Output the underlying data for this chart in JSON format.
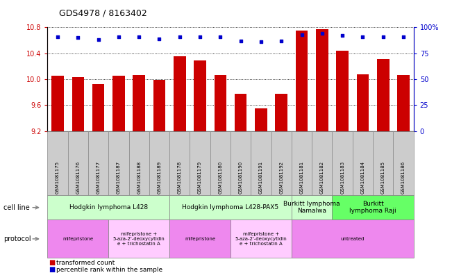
{
  "title": "GDS4978 / 8163402",
  "samples": [
    "GSM1081175",
    "GSM1081176",
    "GSM1081177",
    "GSM1081187",
    "GSM1081188",
    "GSM1081189",
    "GSM1081178",
    "GSM1081179",
    "GSM1081180",
    "GSM1081190",
    "GSM1081191",
    "GSM1081192",
    "GSM1081181",
    "GSM1081182",
    "GSM1081183",
    "GSM1081184",
    "GSM1081185",
    "GSM1081186"
  ],
  "bar_values": [
    10.05,
    10.03,
    9.93,
    10.05,
    10.06,
    9.99,
    10.35,
    10.29,
    10.06,
    9.78,
    9.55,
    9.77,
    10.75,
    10.77,
    10.44,
    10.07,
    10.31,
    10.06
  ],
  "dot_values": [
    91,
    90,
    88,
    91,
    91,
    89,
    91,
    91,
    91,
    87,
    86,
    87,
    93,
    94,
    92,
    91,
    91,
    91
  ],
  "ylim_left": [
    9.2,
    10.8
  ],
  "ylim_right": [
    0,
    100
  ],
  "yticks_left": [
    9.2,
    9.6,
    10.0,
    10.4,
    10.8
  ],
  "yticks_right": [
    0,
    25,
    50,
    75,
    100
  ],
  "bar_color": "#cc0000",
  "dot_color": "#0000cc",
  "bar_width": 0.6,
  "cell_line_groups": [
    {
      "label": "Hodgkin lymphoma L428",
      "start": 0,
      "end": 5,
      "color": "#ccffcc"
    },
    {
      "label": "Hodgkin lymphoma L428-PAX5",
      "start": 6,
      "end": 11,
      "color": "#ccffcc"
    },
    {
      "label": "Burkitt lymphoma\nNamalwa",
      "start": 12,
      "end": 13,
      "color": "#ccffcc"
    },
    {
      "label": "Burkitt\nlymphoma Raji",
      "start": 14,
      "end": 17,
      "color": "#66ff66"
    }
  ],
  "protocol_groups": [
    {
      "label": "mifepristone",
      "start": 0,
      "end": 2,
      "color": "#ee88ee"
    },
    {
      "label": "mifepristone +\n5-aza-2'-deoxycytidin\ne + trichostatin A",
      "start": 3,
      "end": 5,
      "color": "#ffccff"
    },
    {
      "label": "mifepristone",
      "start": 6,
      "end": 8,
      "color": "#ee88ee"
    },
    {
      "label": "mifepristone +\n5-aza-2'-deoxycytidin\ne + trichostatin A",
      "start": 9,
      "end": 11,
      "color": "#ffccff"
    },
    {
      "label": "untreated",
      "start": 12,
      "end": 17,
      "color": "#ee88ee"
    }
  ],
  "legend_bar_label": "transformed count",
  "legend_dot_label": "percentile rank within the sample",
  "cell_line_label": "cell line",
  "protocol_label": "protocol",
  "sample_bg_color": "#cccccc",
  "sample_border_color": "#888888"
}
